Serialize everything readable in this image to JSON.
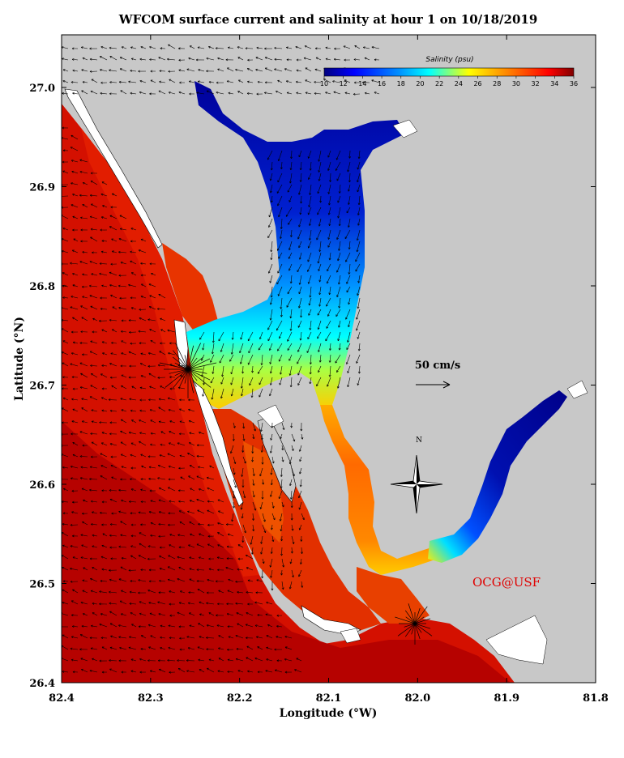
{
  "title": "WFCOM surface current and salinity at hour 1 on 10/18/2019",
  "x_axis": {
    "label": "Longitude (°W)",
    "ticks": [
      "82.4",
      "82.3",
      "82.2",
      "82.1",
      "82.0",
      "81.9",
      "81.8"
    ]
  },
  "y_axis": {
    "label": "Latitude (°N)",
    "ticks": [
      "26.4",
      "26.5",
      "26.6",
      "26.7",
      "26.8",
      "26.9",
      "27.0"
    ]
  },
  "colorbar": {
    "title": "Salinity (psu)",
    "ticks": [
      "10",
      "12",
      "14",
      "16",
      "18",
      "20",
      "22",
      "24",
      "26",
      "28",
      "30",
      "32",
      "34",
      "36"
    ],
    "min": 10,
    "max": 36
  },
  "scale_vector": {
    "label": "50 cm/s",
    "value_cm_s": 50
  },
  "compass": {
    "north_label": "N"
  },
  "credit": "OCG@USF",
  "colors": {
    "land": "#c8c8c8",
    "deep_ocean": "#a80000",
    "ocean": "#d41000",
    "coastal": "#e82000",
    "credit": "#e00000"
  }
}
